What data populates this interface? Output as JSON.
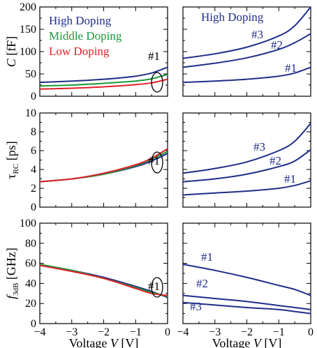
{
  "colors": {
    "high": "#1f2d8a",
    "middle": "#1a9a3a",
    "low": "#e0202a",
    "black": "#000000"
  },
  "chart_data": [
    {
      "type": "line",
      "panel": "top-left",
      "ylabel_var": "C",
      "ylabel_unit": "[fF]",
      "xlim": [
        -4,
        0
      ],
      "ylim": [
        0,
        200
      ],
      "yticks": [
        "0",
        "50",
        "100",
        "150",
        "200"
      ],
      "xticks": [],
      "legend": [
        "High Doping",
        "Middle Doping",
        "Low Doping"
      ],
      "legend_loc": "top-left",
      "annotations": [
        "#1"
      ],
      "series": [
        {
          "name": "High Doping",
          "color": "high",
          "x": [
            -4,
            -3,
            -2,
            -1,
            -0.5,
            0
          ],
          "y": [
            31,
            34,
            38,
            45,
            52,
            65
          ]
        },
        {
          "name": "Middle Doping",
          "color": "middle",
          "x": [
            -4,
            -3,
            -2,
            -1,
            -0.5,
            0
          ],
          "y": [
            23,
            25,
            29,
            34,
            39,
            49
          ]
        },
        {
          "name": "Low Doping",
          "color": "low",
          "x": [
            -4,
            -3,
            -2,
            -1,
            -0.5,
            0
          ],
          "y": [
            16,
            18,
            21,
            26,
            30,
            38
          ]
        }
      ]
    },
    {
      "type": "line",
      "panel": "top-right",
      "xlim": [
        -4,
        0
      ],
      "ylim": [
        0,
        200
      ],
      "yticks": [],
      "xticks": [],
      "title": "High Doping",
      "annotations": [
        "#3",
        "#2",
        "#1"
      ],
      "series": [
        {
          "color": "high",
          "x": [
            -4,
            -3,
            -2,
            -1,
            -0.5,
            0
          ],
          "y": [
            85,
            95,
            110,
            135,
            158,
            200
          ]
        },
        {
          "color": "high",
          "x": [
            -4,
            -3,
            -2,
            -1,
            -0.5,
            0
          ],
          "y": [
            65,
            74,
            86,
            105,
            120,
            140
          ]
        },
        {
          "color": "high",
          "x": [
            -4,
            -3,
            -2,
            -1,
            -0.5,
            0
          ],
          "y": [
            31,
            34,
            38,
            45,
            52,
            65
          ]
        }
      ]
    },
    {
      "type": "line",
      "panel": "middle-left",
      "ylabel_var": "τ",
      "ylabel_sub": "RC",
      "ylabel_unit": "[ps]",
      "xlim": [
        -4,
        0
      ],
      "ylim": [
        0,
        10
      ],
      "yticks": [
        "0",
        "2",
        "4",
        "6",
        "8",
        "10"
      ],
      "xticks": [],
      "annotations": [
        "#1"
      ],
      "series": [
        {
          "color": "high",
          "x": [
            -4,
            -3,
            -2,
            -1,
            -0.5,
            0
          ],
          "y": [
            2.7,
            3.0,
            3.5,
            4.3,
            4.9,
            5.7
          ]
        },
        {
          "color": "middle",
          "x": [
            -4,
            -3,
            -2,
            -1,
            -0.5,
            0
          ],
          "y": [
            2.7,
            3.0,
            3.5,
            4.4,
            5.1,
            5.9
          ]
        },
        {
          "color": "low",
          "x": [
            -4,
            -3,
            -2,
            -1,
            -0.5,
            0
          ],
          "y": [
            2.7,
            3.0,
            3.6,
            4.5,
            5.2,
            6.2
          ]
        }
      ]
    },
    {
      "type": "line",
      "panel": "middle-right",
      "xlim": [
        -4,
        0
      ],
      "ylim": [
        0,
        10
      ],
      "yticks": [],
      "xticks": [],
      "annotations": [
        "#3",
        "#2",
        "#1"
      ],
      "series": [
        {
          "color": "high",
          "x": [
            -4,
            -3,
            -2,
            -1,
            -0.5,
            0
          ],
          "y": [
            3.6,
            4.1,
            4.8,
            6.0,
            7.0,
            8.9
          ]
        },
        {
          "color": "high",
          "x": [
            -4,
            -3,
            -2,
            -1,
            -0.5,
            0
          ],
          "y": [
            2.7,
            3.0,
            3.5,
            4.3,
            4.9,
            6.1
          ]
        },
        {
          "color": "high",
          "x": [
            -4,
            -3,
            -2,
            -1,
            -0.5,
            0
          ],
          "y": [
            1.3,
            1.5,
            1.7,
            2.0,
            2.3,
            2.8
          ]
        }
      ]
    },
    {
      "type": "line",
      "panel": "bottom-left",
      "ylabel_var": "f",
      "ylabel_sub": "3dB",
      "ylabel_unit": "[GHz]",
      "xlabel_text": "Voltage",
      "xlabel_var": "V",
      "xlabel_unit": "[V]",
      "xlim": [
        -4,
        0
      ],
      "ylim": [
        0,
        100
      ],
      "yticks": [
        "0",
        "20",
        "40",
        "60",
        "80",
        "100"
      ],
      "xticks": [
        "−4",
        "−3",
        "−2",
        "−1",
        "0"
      ],
      "annotations": [
        "#1"
      ],
      "series": [
        {
          "color": "high",
          "x": [
            -4,
            -3,
            -2,
            -1,
            -0.5,
            0
          ],
          "y": [
            58,
            53,
            46,
            37,
            32,
            26
          ]
        },
        {
          "color": "middle",
          "x": [
            -4,
            -3,
            -2,
            -1,
            -0.5,
            0
          ],
          "y": [
            59,
            53,
            45,
            36,
            31,
            27
          ]
        },
        {
          "color": "low",
          "x": [
            -4,
            -3,
            -2,
            -1,
            -0.5,
            0
          ],
          "y": [
            58,
            52,
            45,
            35,
            30,
            28
          ]
        }
      ]
    },
    {
      "type": "line",
      "panel": "bottom-right",
      "xlabel_text": "Voltage",
      "xlabel_var": "V",
      "xlabel_unit": "[V]",
      "xlim": [
        -4,
        0
      ],
      "ylim": [
        0,
        100
      ],
      "yticks": [],
      "xticks": [
        "−4",
        "−3",
        "−2",
        "−1",
        "0"
      ],
      "annotations": [
        "#1",
        "#2",
        "#3"
      ],
      "series": [
        {
          "color": "high",
          "x": [
            -4,
            -3,
            -2,
            -1,
            -0.5,
            0
          ],
          "y": [
            59,
            53,
            46,
            38,
            34,
            28
          ]
        },
        {
          "color": "high",
          "x": [
            -4,
            -3,
            -2,
            -1,
            -0.5,
            0
          ],
          "y": [
            28,
            25,
            22,
            18,
            16,
            14
          ]
        },
        {
          "color": "high",
          "x": [
            -4,
            -3,
            -2,
            -1,
            -0.5,
            0
          ],
          "y": [
            21,
            18.5,
            16,
            14,
            12,
            10
          ]
        }
      ]
    }
  ]
}
